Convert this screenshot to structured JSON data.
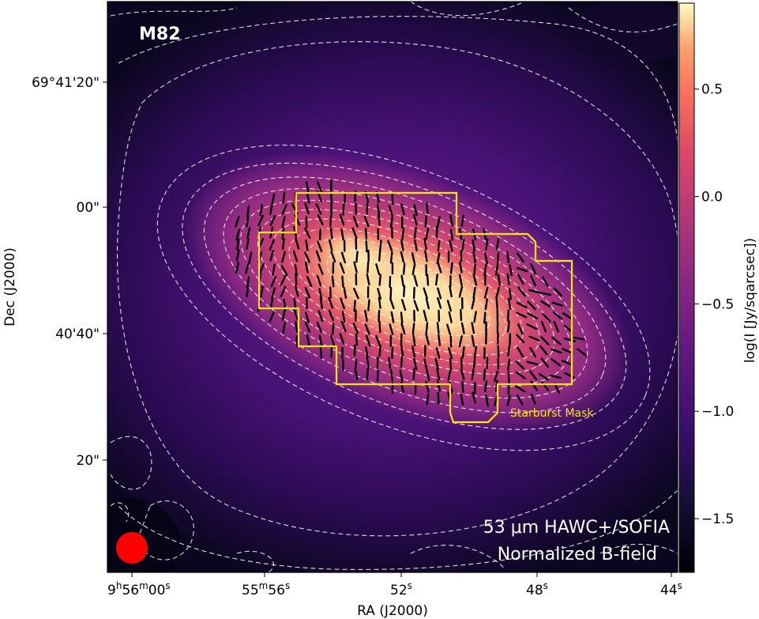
{
  "chart_data": {
    "type": "heatmap",
    "object_name": "M82",
    "annotation_lines": [
      "53 μm HAWC+/SOFIA",
      "Normalized B-field"
    ],
    "mask_label": "Starburst Mask",
    "xlabel": "RA (J2000)",
    "ylabel": "Dec (J2000)",
    "colorbar_label": "log(I [Jy/sqarcsec])",
    "colormap": "magma",
    "colorbar_range": [
      -1.75,
      0.9
    ],
    "colorbar_ticks": [
      {
        "value": 0.5,
        "label": "0.5"
      },
      {
        "value": 0.0,
        "label": "0.0"
      },
      {
        "value": -0.5,
        "label": "−0.5"
      },
      {
        "value": -1.0,
        "label": "−1.0"
      },
      {
        "value": -1.5,
        "label": "−1.5"
      }
    ],
    "x_ticks": [
      {
        "main": "9",
        "sup1": "h",
        "mid": "56",
        "sup2": "m",
        "mid2": "00",
        "sup3": "s"
      },
      {
        "main": "55",
        "sup1": "m",
        "mid": "56",
        "sup2": "s"
      },
      {
        "main": "52",
        "sup1": "s"
      },
      {
        "main": "48",
        "sup1": "s"
      },
      {
        "main": "44",
        "sup1": "s"
      }
    ],
    "y_ticks": [
      "69°41'20\"",
      "00\"",
      "40'40\"",
      "20\""
    ],
    "contours": "white dashed",
    "vector_segments": "black",
    "mask_color": "#ffe600",
    "beam_color": "#ff0000"
  }
}
